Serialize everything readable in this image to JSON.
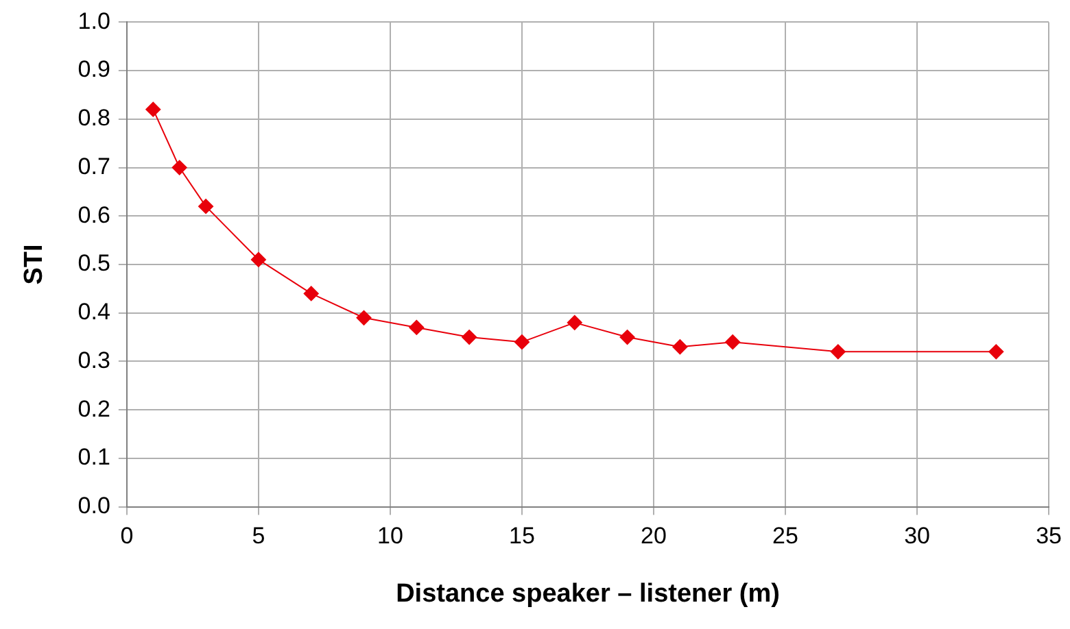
{
  "chart_data": {
    "type": "line",
    "xlabel": "Distance speaker – listener (m)",
    "ylabel": "STI",
    "x": [
      1,
      2,
      3,
      5,
      7,
      9,
      11,
      13,
      15,
      17,
      19,
      21,
      23,
      27,
      33
    ],
    "series": [
      {
        "color": "#e8000b",
        "values": [
          0.82,
          0.7,
          0.62,
          0.51,
          0.44,
          0.39,
          0.37,
          0.35,
          0.34,
          0.38,
          0.35,
          0.33,
          0.34,
          0.32,
          0.32
        ]
      }
    ],
    "xlim": [
      0,
      35
    ],
    "xticks": [
      0,
      5,
      10,
      15,
      20,
      25,
      30,
      35
    ],
    "ylim": [
      0,
      1
    ],
    "yticks": [
      {
        "value": 0,
        "label": "0.0"
      },
      {
        "value": 0.1,
        "label": "0.1"
      },
      {
        "value": 0.2,
        "label": "0.2"
      },
      {
        "value": 0.3,
        "label": "0.3"
      },
      {
        "value": 0.4,
        "label": "0.4"
      },
      {
        "value": 0.5,
        "label": "0.5"
      },
      {
        "value": 0.6,
        "label": "0.6"
      },
      {
        "value": 0.7,
        "label": "0.7"
      },
      {
        "value": 0.8,
        "label": "0.8"
      },
      {
        "value": 0.9,
        "label": "0.9"
      },
      {
        "value": 1,
        "label": "1.0"
      }
    ],
    "grid": true,
    "marker": "diamond",
    "line_style": "solid"
  }
}
